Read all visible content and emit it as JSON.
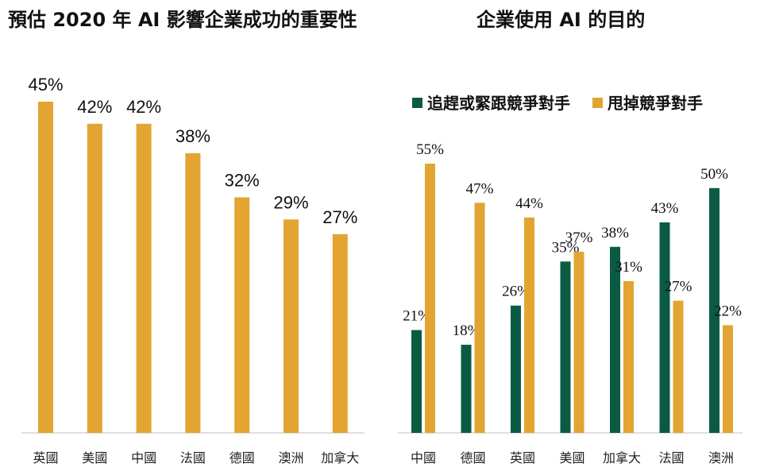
{
  "colors": {
    "gold": "#E2A531",
    "green": "#0B5B44"
  },
  "chart_data": [
    {
      "type": "bar",
      "title": "預估 2020 年 AI 影響企業成功的重要性",
      "categories": [
        "英國",
        "美國",
        "中國",
        "法國",
        "德國",
        "澳洲",
        "加拿大"
      ],
      "values": [
        45,
        42,
        42,
        38,
        32,
        29,
        27
      ],
      "value_suffix": "%",
      "ylim": [
        0,
        45
      ],
      "grid": false,
      "color": "#E2A531"
    },
    {
      "type": "bar",
      "title": "企業使用  AI  的目的",
      "categories": [
        "中國",
        "德國",
        "英國",
        "美國",
        "加拿大",
        "法國",
        "澳洲"
      ],
      "series": [
        {
          "name": "追趕或緊跟競爭對手",
          "values": [
            21,
            18,
            26,
            35,
            38,
            43,
            50
          ],
          "color": "#0B5B44"
        },
        {
          "name": "甩掉競爭對手",
          "values": [
            55,
            47,
            44,
            37,
            31,
            27,
            22
          ],
          "color": "#E2A531"
        }
      ],
      "value_suffix": "%",
      "ylim": [
        0,
        55
      ],
      "legend": "top",
      "grid": false
    }
  ]
}
